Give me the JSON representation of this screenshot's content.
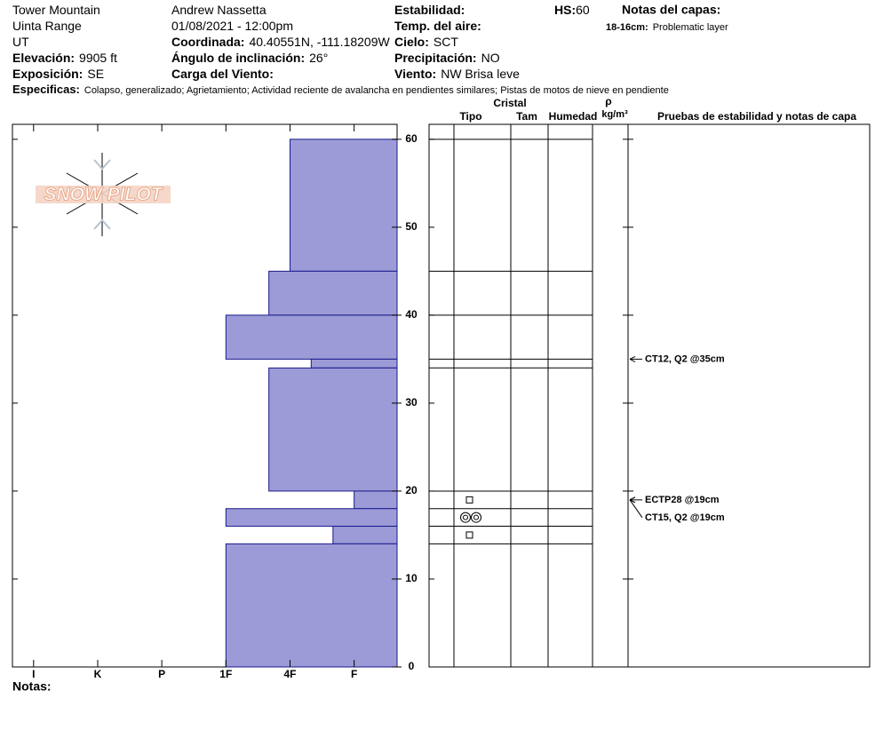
{
  "header": {
    "col1": [
      {
        "value": "Tower Mountain"
      },
      {
        "value": "Uinta Range"
      },
      {
        "value": "UT"
      },
      {
        "label": "Elevación:",
        "value": "9905 ft"
      },
      {
        "label": "Exposición:",
        "value": "SE"
      }
    ],
    "col2": [
      {
        "value": "Andrew Nassetta"
      },
      {
        "value": "01/08/2021 - 12:00pm"
      },
      {
        "label": "Coordinada:",
        "value": "40.40551N, -111.18209W"
      },
      {
        "label": "Ángulo de inclinación:",
        "value": "26°"
      },
      {
        "label": "Carga del Viento:"
      }
    ],
    "col3": [
      {
        "label": "Estabilidad:"
      },
      {
        "label": "Temp. del aire:"
      },
      {
        "label": "Cielo:",
        "value": "SCT"
      },
      {
        "label": "Precipitación:",
        "value": "NO"
      },
      {
        "label": "Viento:",
        "value": "NW Brisa leve"
      }
    ],
    "hs": {
      "label": "HS:",
      "value": "60"
    },
    "notes_title": "Notas del capas:",
    "layer_notes": [
      {
        "label": "18-16cm:",
        "value": "Problematic layer"
      }
    ],
    "specifics": {
      "label": "Especificas:",
      "value": "Colapso, generalizado; Agrietamiento; Actividad reciente de avalancha en pendientes similares; Pistas de motos de nieve en pendiente"
    }
  },
  "chart_data": {
    "type": "snow-profile",
    "logo": "SNOW PILOT",
    "xlim": [
      6.33,
      0.33
    ],
    "xticks": [
      {
        "value": 6,
        "label": "I"
      },
      {
        "value": 5,
        "label": "K"
      },
      {
        "value": 4,
        "label": "P"
      },
      {
        "value": 3,
        "label": "1F"
      },
      {
        "value": 2,
        "label": "4F"
      },
      {
        "value": 1,
        "label": "F"
      }
    ],
    "ylim": [
      0,
      61.7
    ],
    "yticks": [
      0,
      10,
      20,
      30,
      40,
      50,
      60
    ],
    "color": "#9c9bd7",
    "layers": [
      {
        "top": 60,
        "bottom": 45,
        "hardness": 2
      },
      {
        "top": 45,
        "bottom": 40,
        "hardness": 2.33
      },
      {
        "top": 40,
        "bottom": 35,
        "hardness": 3
      },
      {
        "top": 35,
        "bottom": 34,
        "hardness": 1.67
      },
      {
        "top": 34,
        "bottom": 20,
        "hardness": 2.33
      },
      {
        "top": 20,
        "bottom": 18,
        "hardness": 1
      },
      {
        "top": 18,
        "bottom": 16,
        "hardness": 3
      },
      {
        "top": 16,
        "bottom": 14,
        "hardness": 1.33
      },
      {
        "top": 14,
        "bottom": 0,
        "hardness": 3
      }
    ],
    "crystal_header": "Cristal",
    "columns": [
      "Tipo",
      "Tam",
      "Humedad"
    ],
    "density_symbol": "ρ",
    "density_unit": "kg/m³",
    "tests_header": "Pruebas de estabilidad y notas de capa",
    "tests": [
      {
        "label": "CT12, Q2 @35cm",
        "depth": 35
      },
      {
        "label": "ECTP28 @19cm",
        "depth": 19
      },
      {
        "label": "CT15, Q2 @19cm",
        "depth": 19
      }
    ],
    "notes_label": "Notas:"
  }
}
